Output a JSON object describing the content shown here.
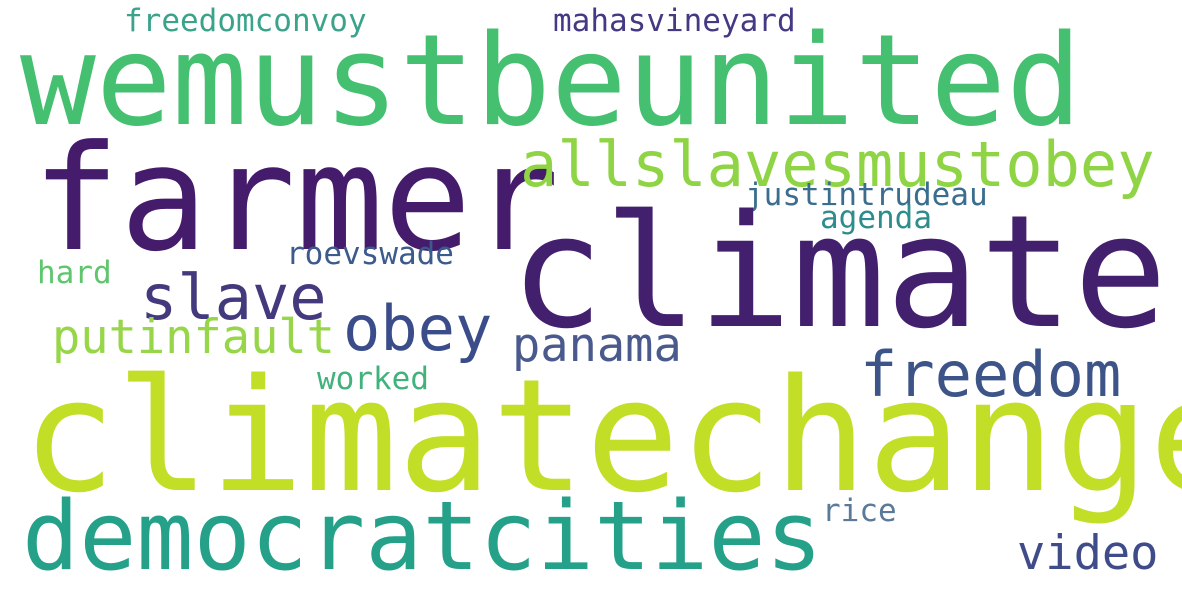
{
  "words": [
    {
      "key": "freedomconvoy",
      "text": "freedomconvoy",
      "color": "#3aa38a"
    },
    {
      "key": "mahasvineyard",
      "text": "mahasvineyard",
      "color": "#443a83"
    },
    {
      "key": "wemustbeunited",
      "text": "wemustbeunited",
      "color": "#45bf70"
    },
    {
      "key": "farmer",
      "text": "farmer",
      "color": "#451b6b"
    },
    {
      "key": "allslavesmustobey",
      "text": "allslavesmustobey",
      "color": "#8fd444"
    },
    {
      "key": "justintrudeau",
      "text": "justintrudeau",
      "color": "#3a6d8e"
    },
    {
      "key": "agenda",
      "text": "agenda",
      "color": "#2e8d8c"
    },
    {
      "key": "climate",
      "text": "climate",
      "color": "#43206e"
    },
    {
      "key": "roevswade",
      "text": "roevswade",
      "color": "#3c5a8c"
    },
    {
      "key": "hard",
      "text": "hard",
      "color": "#5fc56e"
    },
    {
      "key": "slave",
      "text": "slave",
      "color": "#433a7e"
    },
    {
      "key": "obey",
      "text": "obey",
      "color": "#3a4d8a"
    },
    {
      "key": "putinfault",
      "text": "putinfault",
      "color": "#97d648"
    },
    {
      "key": "panama",
      "text": "panama",
      "color": "#4a5a8c"
    },
    {
      "key": "freedom",
      "text": "freedom",
      "color": "#3d5488"
    },
    {
      "key": "worked",
      "text": "worked",
      "color": "#42b27d"
    },
    {
      "key": "climatechange",
      "text": "climatechange",
      "color": "#c2de27"
    },
    {
      "key": "rice",
      "text": "rice",
      "color": "#5a7a9a"
    },
    {
      "key": "democratcities",
      "text": "democratcities",
      "color": "#25a18a"
    },
    {
      "key": "video",
      "text": "video",
      "color": "#3f4c89"
    }
  ]
}
